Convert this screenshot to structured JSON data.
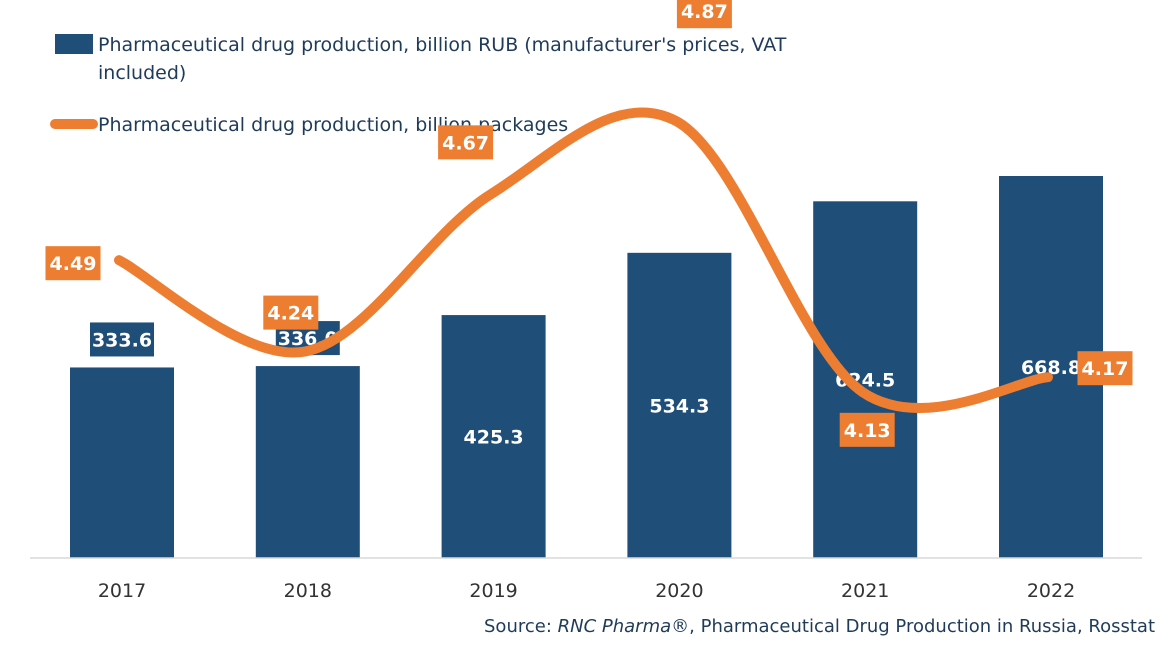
{
  "chart_data": {
    "type": "bar",
    "categories": [
      "2017",
      "2018",
      "2019",
      "2020",
      "2021",
      "2022"
    ],
    "series": [
      {
        "name": "Pharmaceutical drug production, billion RUB (manufacturer's prices, VAT included)",
        "type": "bar",
        "values": [
          333.6,
          336.0,
          425.3,
          534.3,
          624.5,
          668.8
        ],
        "labels": [
          "333.6",
          "336.0",
          "425.3",
          "534.3",
          "624.5",
          "668.8"
        ],
        "color": "#1f4e79"
      },
      {
        "name": "Pharmaceutical drug production, billion packages",
        "type": "line",
        "values": [
          4.49,
          4.24,
          4.67,
          4.87,
          4.13,
          4.17
        ],
        "labels": [
          "4.49",
          "4.24",
          "4.67",
          "4.87",
          "4.13",
          "4.17"
        ],
        "color": "#ed7d31",
        "smooth": true
      }
    ],
    "legend_position": "top-left",
    "grid": false
  },
  "legend": {
    "bar_line1": "Pharmaceutical drug production, billion RUB (manufacturer's prices, VAT",
    "bar_line2": "included)",
    "line": "Pharmaceutical drug production, billion packages"
  },
  "source": {
    "prefix": "Source: ",
    "italic": "RNC Pharma®",
    "suffix": ", Pharmaceutical Drug Production in Russia, Rosstat"
  }
}
